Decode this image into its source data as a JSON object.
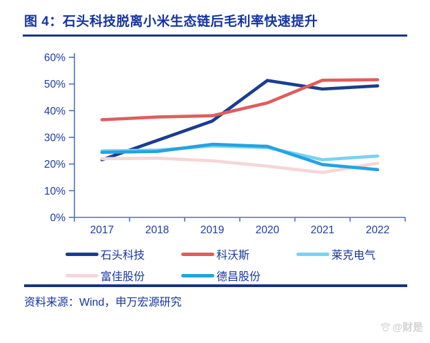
{
  "header": {
    "title": "图 4：石头科技脱离小米生态链后毛利率快速提升"
  },
  "chart_data": {
    "type": "line",
    "title": "石头科技脱离小米生态链后毛利率快速提升",
    "categories": [
      "2017",
      "2018",
      "2019",
      "2020",
      "2021",
      "2022"
    ],
    "y_tick_labels": [
      "60%",
      "50%",
      "40%",
      "30%",
      "20%",
      "10%",
      "0%"
    ],
    "ylim": [
      0,
      60
    ],
    "unit": "%",
    "grid": false,
    "legend_position": "bottom",
    "axis_color": "#4F6EC4",
    "tick_label_color": "#1C3BA6",
    "series": [
      {
        "name": "石头科技",
        "color": "#1A3D8F",
        "values": [
          21.6,
          28.8,
          36.1,
          51.3,
          48.1,
          49.3
        ]
      },
      {
        "name": "科沃斯",
        "color": "#DE5E5E",
        "values": [
          36.6,
          37.6,
          38.1,
          42.9,
          51.4,
          51.6
        ]
      },
      {
        "name": "莱克电气",
        "color": "#7AD2F2",
        "values": [
          24.9,
          25.2,
          26.8,
          26.2,
          21.6,
          23.0
        ]
      },
      {
        "name": "富佳股份",
        "color": "#F6D6D8",
        "values": [
          22.0,
          22.2,
          21.2,
          19.2,
          16.8,
          20.3
        ]
      },
      {
        "name": "德昌股份",
        "color": "#22A3E2",
        "values": [
          24.4,
          24.7,
          27.4,
          26.6,
          19.8,
          17.9
        ]
      }
    ]
  },
  "footer": {
    "source": "资料来源：Wind，申万宏源研究",
    "watermark": "@财是"
  }
}
